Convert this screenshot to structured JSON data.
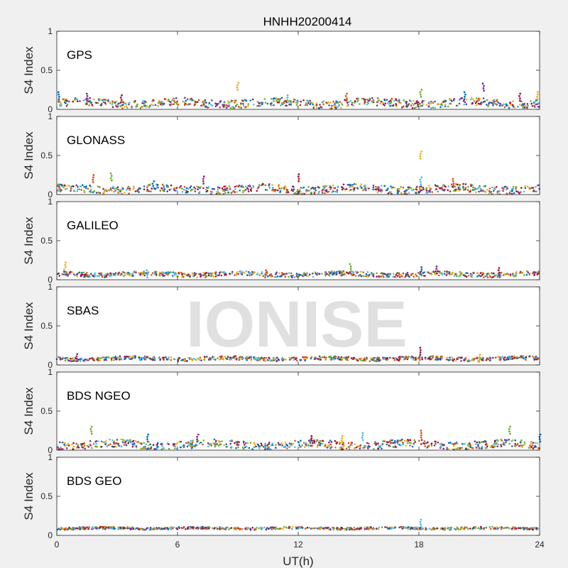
{
  "chart_data": {
    "type": "scatter",
    "title": "HNHH20200414",
    "xlabel": "UT(h)",
    "watermark": "IONISE",
    "xlim": [
      0,
      24
    ],
    "xticks": [
      0,
      6,
      12,
      18,
      24
    ],
    "series_colors": [
      "#0072BD",
      "#D95319",
      "#EDB120",
      "#7E2F8E",
      "#77AC30",
      "#4DBEEE",
      "#A2142F"
    ],
    "panels": [
      {
        "label": "GPS",
        "ylabel": "S4 Index",
        "ylim": [
          0,
          1
        ],
        "yticks": [
          0,
          0.5,
          1
        ],
        "baseline": 0.08,
        "noise": 0.05,
        "spikes": [
          [
            0.1,
            0.22
          ],
          [
            1.5,
            0.2
          ],
          [
            3.2,
            0.18
          ],
          [
            9.0,
            0.34
          ],
          [
            11.5,
            0.18
          ],
          [
            14.4,
            0.2
          ],
          [
            18.1,
            0.25
          ],
          [
            20.3,
            0.22
          ],
          [
            21.2,
            0.33
          ],
          [
            23.0,
            0.2
          ],
          [
            23.9,
            0.22
          ]
        ]
      },
      {
        "label": "GLONASS",
        "ylabel": "S4 Index",
        "ylim": [
          0,
          1
        ],
        "yticks": [
          0,
          0.5,
          1
        ],
        "baseline": 0.07,
        "noise": 0.05,
        "spikes": [
          [
            1.8,
            0.25
          ],
          [
            2.7,
            0.27
          ],
          [
            4.8,
            0.17
          ],
          [
            7.3,
            0.23
          ],
          [
            12.0,
            0.26
          ],
          [
            18.1,
            0.55
          ],
          [
            18.1,
            0.22
          ],
          [
            19.7,
            0.2
          ]
        ]
      },
      {
        "label": "GALILEO",
        "ylabel": "S4 Index",
        "ylim": [
          0,
          1
        ],
        "yticks": [
          0,
          0.5,
          1
        ],
        "baseline": 0.07,
        "noise": 0.03,
        "spikes": [
          [
            0.4,
            0.22
          ],
          [
            4.5,
            0.12
          ],
          [
            10.4,
            0.12
          ],
          [
            14.6,
            0.2
          ],
          [
            18.1,
            0.16
          ],
          [
            18.9,
            0.17
          ],
          [
            22.0,
            0.15
          ]
        ]
      },
      {
        "label": "SBAS",
        "ylabel": "S4 Index",
        "ylim": [
          0,
          1
        ],
        "yticks": [
          0,
          0.5,
          1
        ],
        "baseline": 0.08,
        "noise": 0.025,
        "spikes": [
          [
            1.0,
            0.14
          ],
          [
            18.1,
            0.22
          ],
          [
            21.0,
            0.13
          ]
        ]
      },
      {
        "label": "BDS NGEO",
        "ylabel": "S4 Index",
        "ylim": [
          0,
          1
        ],
        "yticks": [
          0,
          0.5,
          1
        ],
        "baseline": 0.07,
        "noise": 0.05,
        "spikes": [
          [
            1.7,
            0.3
          ],
          [
            4.5,
            0.2
          ],
          [
            7.0,
            0.2
          ],
          [
            12.7,
            0.18
          ],
          [
            14.2,
            0.18
          ],
          [
            15.2,
            0.22
          ],
          [
            18.1,
            0.25
          ],
          [
            22.5,
            0.3
          ],
          [
            24.0,
            0.2
          ]
        ]
      },
      {
        "label": "BDS GEO",
        "ylabel": "S4 Index",
        "ylim": [
          0,
          1
        ],
        "yticks": [
          0,
          0.5,
          1
        ],
        "baseline": 0.09,
        "noise": 0.015,
        "spikes": [
          [
            18.1,
            0.2
          ]
        ]
      }
    ]
  }
}
